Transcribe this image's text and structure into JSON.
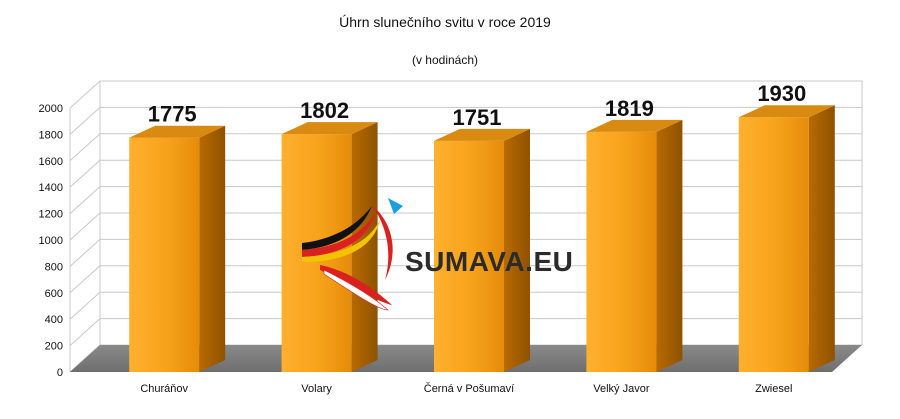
{
  "chart_data": {
    "type": "bar",
    "title": "Úhrn slunečního svitu v roce 2019",
    "subtitle": "(v hodinách)",
    "categories": [
      "Churáňov",
      "Volary",
      "Černá v Pošumaví",
      "Velký Javor",
      "Zwiesel"
    ],
    "values": [
      1775,
      1802,
      1751,
      1819,
      1930
    ],
    "data_labels": [
      "1775",
      "1802",
      "1751",
      "1819",
      "1930"
    ],
    "yticks": [
      "0",
      "200",
      "400",
      "600",
      "800",
      "1000",
      "1200",
      "1400",
      "1600",
      "1800",
      "2000"
    ],
    "ylim": [
      0,
      2000
    ],
    "grid": true,
    "legend": "none",
    "bar_color": "#f7a21b"
  },
  "watermark": {
    "text": "SUMAVA.EU"
  }
}
